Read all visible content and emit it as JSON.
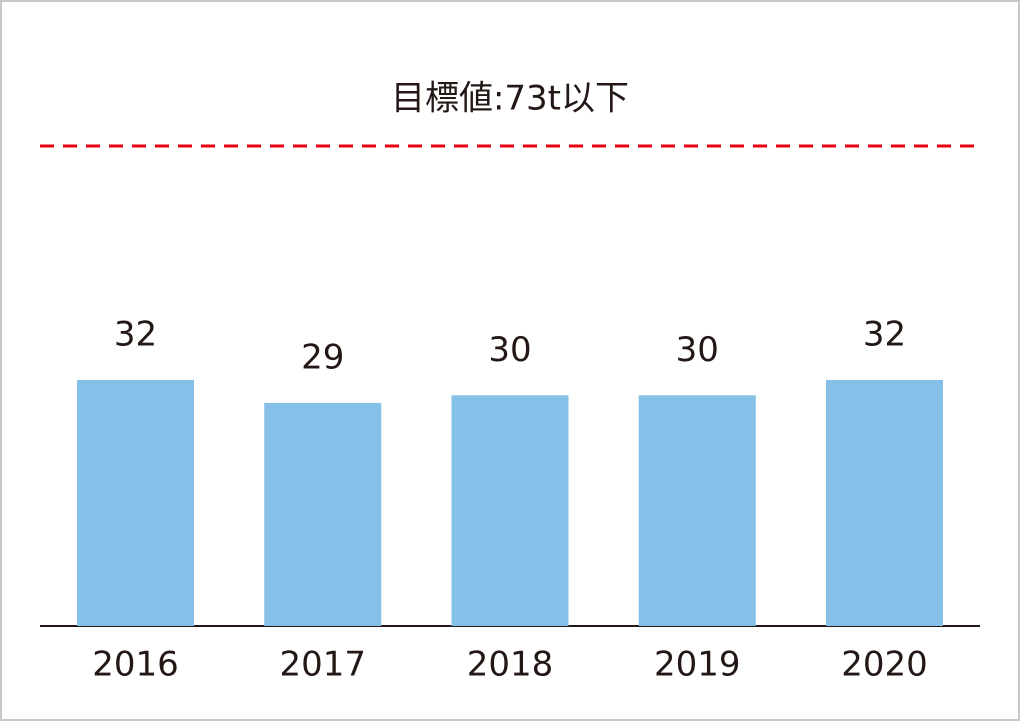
{
  "chart_data": {
    "type": "bar",
    "annotation": "目標値:73t以下",
    "categories": [
      "2016",
      "2017",
      "2018",
      "2019",
      "2020"
    ],
    "values": [
      32,
      29,
      30,
      30,
      32
    ],
    "color": "#85c0e8",
    "target_line_color": "#e60012"
  }
}
